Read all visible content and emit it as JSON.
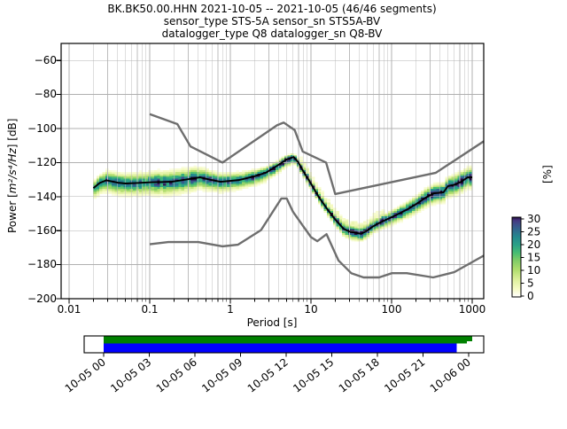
{
  "title": {
    "line1": "BK.BK50.00.HHN   2021-10-05 -- 2021-10-05  (46/46 segments)",
    "line2": "sensor_type STS-5A sensor_sn STS5A-BV",
    "line3": "datalogger_type Q8 datalogger_sn Q8-BV"
  },
  "axes": {
    "xlabel": "Period [s]",
    "ylabel_prefix": "Power [",
    "ylabel_math": "m²/s⁴/Hz",
    "ylabel_suffix": "] [dB]",
    "x_ticks": [
      "0.01",
      "0.1",
      "1",
      "10",
      "100",
      "1000"
    ],
    "y_ticks": [
      "−60",
      "−80",
      "−100",
      "−120",
      "−140",
      "−160",
      "−180",
      "−200"
    ]
  },
  "colorbar": {
    "label": "[%]",
    "ticks": [
      "30",
      "25",
      "20",
      "15",
      "10",
      "5",
      "0"
    ],
    "tick_values": [
      30,
      25,
      20,
      15,
      10,
      5,
      0
    ],
    "max_percent": 30.7,
    "gradient": [
      [
        0.0,
        "#ffffff"
      ],
      [
        0.1,
        "#f6fbc5"
      ],
      [
        0.22,
        "#dcef9a"
      ],
      [
        0.34,
        "#b0dd6d"
      ],
      [
        0.46,
        "#7fcb66"
      ],
      [
        0.55,
        "#47bd72"
      ],
      [
        0.65,
        "#2aa187"
      ],
      [
        0.75,
        "#23898e"
      ],
      [
        0.83,
        "#2f6c8e"
      ],
      [
        0.9,
        "#3b528b"
      ],
      [
        0.96,
        "#453781"
      ],
      [
        1.0,
        "#23093e"
      ]
    ]
  },
  "coverage": {
    "tick_labels": [
      "10-05 00",
      "10-05 03",
      "10-05 06",
      "10-05 09",
      "10-05 12",
      "10-05 15",
      "10-05 18",
      "10-05 21",
      "10-06 00"
    ],
    "green_color": "#008000",
    "blue_color": "#0000ff",
    "green_span": [
      0.0488,
      0.958
    ],
    "green_tail_span": [
      0.958,
      0.9715
    ],
    "blue_span": [
      0.0488,
      0.932
    ]
  },
  "chart_data": {
    "type": "heatmap",
    "title": "BK.BK50.00.HHN 2021-10-05 -- 2021-10-05 (46/46 segments)",
    "xlabel": "Period [s]",
    "ylabel": "Power [m²/s⁴/Hz] [dB]",
    "x_scale": "log",
    "x_range_s": [
      0.008,
      1390
    ],
    "y_range_db": [
      -200,
      -50
    ],
    "x_decades": [
      0.01,
      0.1,
      1,
      10,
      100,
      1000
    ],
    "y_grid_db": [
      -60,
      -80,
      -100,
      -120,
      -140,
      -160,
      -180
    ],
    "colorbar_range_percent": [
      0,
      30.7
    ],
    "nhnm_gray_curve": [
      [
        0.1,
        -91.5
      ],
      [
        0.22,
        -97.4
      ],
      [
        0.32,
        -110.5
      ],
      [
        0.8,
        -120.0
      ],
      [
        3.8,
        -98.0
      ],
      [
        4.6,
        -96.5
      ],
      [
        6.3,
        -101.0
      ],
      [
        7.9,
        -113.5
      ],
      [
        15.4,
        -120.0
      ],
      [
        20.0,
        -138.5
      ],
      [
        354.8,
        -126.0
      ],
      [
        1390,
        -107.5
      ]
    ],
    "nlnm_gray_curve": [
      [
        0.1,
        -168.0
      ],
      [
        0.17,
        -166.7
      ],
      [
        0.4,
        -166.7
      ],
      [
        0.8,
        -169.2
      ],
      [
        1.24,
        -168.3
      ],
      [
        2.4,
        -159.7
      ],
      [
        4.3,
        -141.1
      ],
      [
        5.0,
        -141.1
      ],
      [
        6.0,
        -149.0
      ],
      [
        10.0,
        -163.8
      ],
      [
        12.0,
        -166.2
      ],
      [
        15.6,
        -162.1
      ],
      [
        21.9,
        -177.5
      ],
      [
        31.6,
        -185.0
      ],
      [
        45.0,
        -187.5
      ],
      [
        70.0,
        -187.5
      ],
      [
        101.0,
        -185.0
      ],
      [
        154.0,
        -185.0
      ],
      [
        328.0,
        -187.5
      ],
      [
        600.0,
        -184.4
      ],
      [
        1390,
        -174.7
      ]
    ],
    "mode_line": [
      [
        0.02,
        -135.0
      ],
      [
        0.024,
        -132.0
      ],
      [
        0.029,
        -130.4
      ],
      [
        0.04,
        -131.8
      ],
      [
        0.05,
        -132.3
      ],
      [
        0.07,
        -132.0
      ],
      [
        0.1,
        -131.6
      ],
      [
        0.15,
        -131.4
      ],
      [
        0.19,
        -131.2
      ],
      [
        0.3,
        -129.8
      ],
      [
        0.42,
        -128.7
      ],
      [
        0.55,
        -130.0
      ],
      [
        0.75,
        -131.3
      ],
      [
        1.0,
        -130.8
      ],
      [
        1.3,
        -130.2
      ],
      [
        2.0,
        -128.0
      ],
      [
        2.75,
        -126.0
      ],
      [
        3.8,
        -121.9
      ],
      [
        5.0,
        -118.2
      ],
      [
        6.1,
        -116.7
      ],
      [
        7.0,
        -120.0
      ],
      [
        8.0,
        -125.0
      ],
      [
        9.7,
        -131.3
      ],
      [
        12.4,
        -140.0
      ],
      [
        16.0,
        -147.5
      ],
      [
        20.0,
        -153.5
      ],
      [
        25.5,
        -159.0
      ],
      [
        30.0,
        -160.5
      ],
      [
        36.0,
        -161.3
      ],
      [
        42.0,
        -161.9
      ],
      [
        50.0,
        -160.0
      ],
      [
        58.0,
        -157.7
      ],
      [
        70.0,
        -155.5
      ],
      [
        96.0,
        -152.5
      ],
      [
        130,
        -149.5
      ],
      [
        160,
        -147.3
      ],
      [
        200,
        -144.5
      ],
      [
        265,
        -140.6
      ],
      [
        336,
        -138.0
      ],
      [
        440,
        -137.5
      ],
      [
        500,
        -133.9
      ],
      [
        600,
        -133.0
      ],
      [
        728,
        -131.3
      ],
      [
        874,
        -128.7
      ],
      [
        1000,
        -128.7
      ]
    ],
    "histogram": {
      "period_start_s": 0.02,
      "period_end_s": 1000,
      "step_octaves": 0.125,
      "db_bin": 1,
      "band_profile": [
        [
          0.02,
          3.5,
          5.5,
          0.7
        ],
        [
          0.03,
          5.0,
          6.0,
          0.8
        ],
        [
          0.06,
          5.0,
          6.0,
          0.75
        ],
        [
          0.12,
          5.5,
          6.5,
          0.8
        ],
        [
          0.3,
          5.5,
          6.5,
          0.85
        ],
        [
          0.6,
          4.5,
          5.5,
          0.8
        ],
        [
          1.2,
          4.0,
          5.0,
          0.8
        ],
        [
          2.5,
          3.0,
          4.5,
          0.95
        ],
        [
          5.0,
          2.0,
          3.5,
          1.0
        ],
        [
          6.5,
          2.0,
          3.0,
          0.95
        ],
        [
          9.0,
          2.5,
          3.0,
          0.9
        ],
        [
          15,
          2.5,
          3.0,
          0.85
        ],
        [
          30,
          3.0,
          4.0,
          0.9
        ],
        [
          60,
          3.0,
          3.5,
          0.9
        ],
        [
          120,
          3.5,
          4.0,
          0.92
        ],
        [
          300,
          4.5,
          5.0,
          0.97
        ],
        [
          600,
          5.0,
          5.5,
          0.97
        ],
        [
          1000,
          5.0,
          5.5,
          0.97
        ]
      ],
      "pale_fan": {
        "pmin": 7.5,
        "pmax": 80,
        "amp": 0.15,
        "sigma_db": 7
      }
    }
  }
}
